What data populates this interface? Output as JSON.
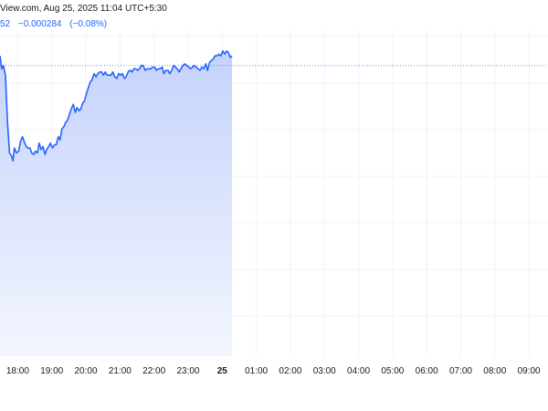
{
  "header": {
    "attribution": "View.com, Aug 25, 2025 11:04 UTC+5:30",
    "price_fragment": "52",
    "change": "−0.000284",
    "change_pct": "(−0.08%)"
  },
  "colors": {
    "line": "#2962ff",
    "area_top": "#c5d3fb",
    "area_bottom": "#f3f6fe",
    "grid": "#f0f3fa",
    "ref_line": "#2962ff"
  },
  "chart_data": {
    "type": "area",
    "xlabel": "",
    "ylabel": "",
    "grid": true,
    "x_ticks": [
      {
        "label": "18:00",
        "t": 1.0
      },
      {
        "label": "19:00",
        "t": 2.0
      },
      {
        "label": "20:00",
        "t": 3.0
      },
      {
        "label": "21:00",
        "t": 4.0
      },
      {
        "label": "22:00",
        "t": 5.0
      },
      {
        "label": "23:00",
        "t": 6.0
      },
      {
        "label": "25",
        "t": 7.0,
        "bold": true
      },
      {
        "label": "01:00",
        "t": 8.0
      },
      {
        "label": "02:00",
        "t": 9.0
      },
      {
        "label": "03:00",
        "t": 10.0
      },
      {
        "label": "04:00",
        "t": 11.0
      },
      {
        "label": "05:00",
        "t": 12.0
      },
      {
        "label": "06:00",
        "t": 13.0
      },
      {
        "label": "07:00",
        "t": 14.0
      },
      {
        "label": "08:00",
        "t": 15.0
      },
      {
        "label": "09:00",
        "t": 16.0
      }
    ],
    "t_range": [
      0.48,
      16.56
    ],
    "y_range": [
      0,
      100
    ],
    "reference_value": 90,
    "points": [
      [
        0.48,
        96
      ],
      [
        0.53,
        88
      ],
      [
        0.58,
        90
      ],
      [
        0.64,
        84
      ],
      [
        0.7,
        55
      ],
      [
        0.76,
        36
      ],
      [
        0.82,
        34
      ],
      [
        0.86,
        31
      ],
      [
        0.9,
        39
      ],
      [
        0.96,
        36
      ],
      [
        1.03,
        37
      ],
      [
        1.08,
        43
      ],
      [
        1.14,
        46
      ],
      [
        1.19,
        43
      ],
      [
        1.25,
        40
      ],
      [
        1.3,
        39
      ],
      [
        1.36,
        39
      ],
      [
        1.41,
        36
      ],
      [
        1.47,
        35
      ],
      [
        1.52,
        37
      ],
      [
        1.58,
        36
      ],
      [
        1.63,
        42
      ],
      [
        1.69,
        38
      ],
      [
        1.74,
        40
      ],
      [
        1.8,
        35
      ],
      [
        1.85,
        38
      ],
      [
        1.91,
        40
      ],
      [
        1.96,
        42
      ],
      [
        2.02,
        39
      ],
      [
        2.08,
        41
      ],
      [
        2.13,
        41
      ],
      [
        2.19,
        46
      ],
      [
        2.24,
        44
      ],
      [
        2.3,
        51
      ],
      [
        2.35,
        52
      ],
      [
        2.41,
        55
      ],
      [
        2.46,
        56
      ],
      [
        2.52,
        60
      ],
      [
        2.57,
        63
      ],
      [
        2.63,
        66
      ],
      [
        2.69,
        61
      ],
      [
        2.74,
        64
      ],
      [
        2.8,
        62
      ],
      [
        2.85,
        63
      ],
      [
        2.91,
        67
      ],
      [
        2.96,
        68
      ],
      [
        3.02,
        73
      ],
      [
        3.07,
        76
      ],
      [
        3.13,
        80
      ],
      [
        3.18,
        81
      ],
      [
        3.24,
        85
      ],
      [
        3.3,
        83
      ],
      [
        3.35,
        85
      ],
      [
        3.41,
        86
      ],
      [
        3.46,
        86
      ],
      [
        3.52,
        84
      ],
      [
        3.57,
        86
      ],
      [
        3.63,
        84
      ],
      [
        3.68,
        84
      ],
      [
        3.74,
        84
      ],
      [
        3.79,
        86
      ],
      [
        3.85,
        83
      ],
      [
        3.91,
        82
      ],
      [
        3.96,
        85
      ],
      [
        4.02,
        84
      ],
      [
        4.07,
        85
      ],
      [
        4.13,
        82
      ],
      [
        4.18,
        83
      ],
      [
        4.24,
        86
      ],
      [
        4.29,
        87
      ],
      [
        4.35,
        86
      ],
      [
        4.41,
        88
      ],
      [
        4.46,
        88
      ],
      [
        4.52,
        87
      ],
      [
        4.57,
        88
      ],
      [
        4.63,
        90
      ],
      [
        4.68,
        90
      ],
      [
        4.74,
        87
      ],
      [
        4.8,
        88
      ],
      [
        4.85,
        88
      ],
      [
        4.91,
        88
      ],
      [
        4.96,
        89
      ],
      [
        5.02,
        89
      ],
      [
        5.07,
        87
      ],
      [
        5.13,
        88
      ],
      [
        5.18,
        88
      ],
      [
        5.24,
        89
      ],
      [
        5.29,
        85
      ],
      [
        5.35,
        87
      ],
      [
        5.41,
        87
      ],
      [
        5.46,
        85
      ],
      [
        5.52,
        87
      ],
      [
        5.57,
        90
      ],
      [
        5.63,
        89
      ],
      [
        5.68,
        88
      ],
      [
        5.74,
        86
      ],
      [
        5.79,
        88
      ],
      [
        5.85,
        90
      ],
      [
        5.9,
        91
      ],
      [
        5.96,
        90
      ],
      [
        6.02,
        89
      ],
      [
        6.07,
        88
      ],
      [
        6.13,
        89
      ],
      [
        6.18,
        90
      ],
      [
        6.24,
        89
      ],
      [
        6.29,
        88
      ],
      [
        6.35,
        87
      ],
      [
        6.4,
        89
      ],
      [
        6.46,
        88
      ],
      [
        6.52,
        91
      ],
      [
        6.57,
        87
      ],
      [
        6.63,
        92
      ],
      [
        6.68,
        93
      ],
      [
        6.74,
        94
      ],
      [
        6.79,
        96
      ],
      [
        6.85,
        96
      ],
      [
        6.9,
        97
      ],
      [
        6.96,
        96
      ],
      [
        7.02,
        99
      ],
      [
        7.07,
        97
      ],
      [
        7.13,
        99
      ],
      [
        7.18,
        98
      ],
      [
        7.24,
        95
      ],
      [
        7.29,
        96
      ]
    ]
  }
}
